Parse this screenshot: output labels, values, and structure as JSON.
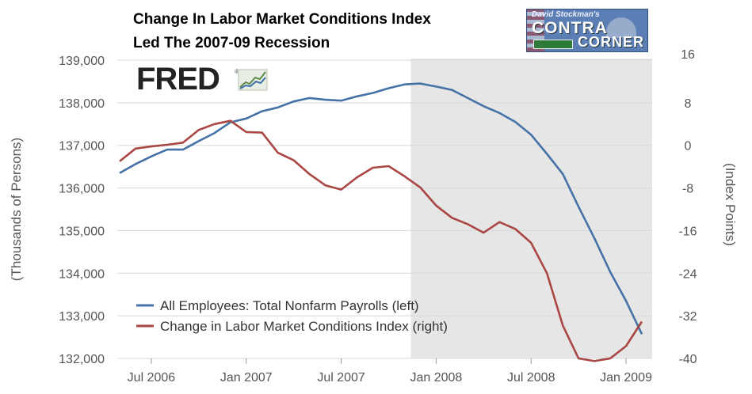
{
  "header": {
    "title_line1": "Change In Labor Market Conditions Index",
    "title_line2": "Led The 2007-09 Recession"
  },
  "logos": {
    "contra": {
      "top_text": "David Stockman's",
      "word1": "CONTRA",
      "word2": "CORNER"
    },
    "fred": {
      "word": "FRED",
      "reg": "®"
    }
  },
  "chart_data": {
    "type": "line",
    "x": [
      "2006-05",
      "2006-06",
      "2006-07",
      "2006-08",
      "2006-09",
      "2006-10",
      "2006-11",
      "2006-12",
      "2007-01",
      "2007-02",
      "2007-03",
      "2007-04",
      "2007-05",
      "2007-06",
      "2007-07",
      "2007-08",
      "2007-09",
      "2007-10",
      "2007-11",
      "2007-12",
      "2008-01",
      "2008-02",
      "2008-03",
      "2008-04",
      "2008-05",
      "2008-06",
      "2008-07",
      "2008-08",
      "2008-09",
      "2008-10",
      "2008-11",
      "2008-12",
      "2009-01",
      "2009-02"
    ],
    "series": [
      {
        "name": "All Employees: Total Nonfarm Payrolls (left)",
        "axis": "left",
        "color": "#4572a7",
        "values": [
          136350,
          136560,
          136740,
          136900,
          136900,
          137100,
          137290,
          137540,
          137630,
          137800,
          137890,
          138030,
          138110,
          138070,
          138050,
          138150,
          138230,
          138340,
          138430,
          138450,
          138380,
          138300,
          138110,
          137920,
          137760,
          137550,
          137250,
          136800,
          136330,
          135560,
          134820,
          134030,
          133350,
          132570
        ]
      },
      {
        "name": "Change in Labor Market Conditions Index (right)",
        "axis": "right",
        "color": "#aa4643",
        "values": [
          -3.0,
          -0.6,
          -0.2,
          0.1,
          0.5,
          2.9,
          4.0,
          4.6,
          2.5,
          2.4,
          -1.4,
          -2.8,
          -5.4,
          -7.5,
          -8.3,
          -6.0,
          -4.2,
          -3.9,
          -5.8,
          -7.9,
          -11.3,
          -13.6,
          -14.8,
          -16.4,
          -14.4,
          -15.7,
          -18.3,
          -24.0,
          -33.8,
          -40.0,
          -40.5,
          -40.0,
          -37.7,
          -33.1
        ]
      }
    ],
    "y_left": {
      "label": "(Thousands of Persons)",
      "ticks": [
        "132,000",
        "133,000",
        "134,000",
        "135,000",
        "136,000",
        "137,000",
        "138,000",
        "139,000"
      ],
      "lim": [
        132000,
        139000
      ]
    },
    "y_right": {
      "label": "(Index Points)",
      "ticks": [
        "-40",
        "-32",
        "-24",
        "-16",
        "-8",
        "0",
        "8",
        "16"
      ],
      "lim": [
        -40,
        16
      ]
    },
    "x_ticks": [
      {
        "label": "Jul 2006",
        "x": "2006-07"
      },
      {
        "label": "Jan 2007",
        "x": "2007-01"
      },
      {
        "label": "Jul 2007",
        "x": "2007-07"
      },
      {
        "label": "Jan 2008",
        "x": "2008-01"
      },
      {
        "label": "Jul 2008",
        "x": "2008-07"
      },
      {
        "label": "Jan 2009",
        "x": "2009-01"
      }
    ],
    "recession": {
      "start": "2007-12",
      "end": "2009-02",
      "color": "#e6e6e6"
    },
    "grid": true,
    "legend_position": "bottom-left"
  }
}
